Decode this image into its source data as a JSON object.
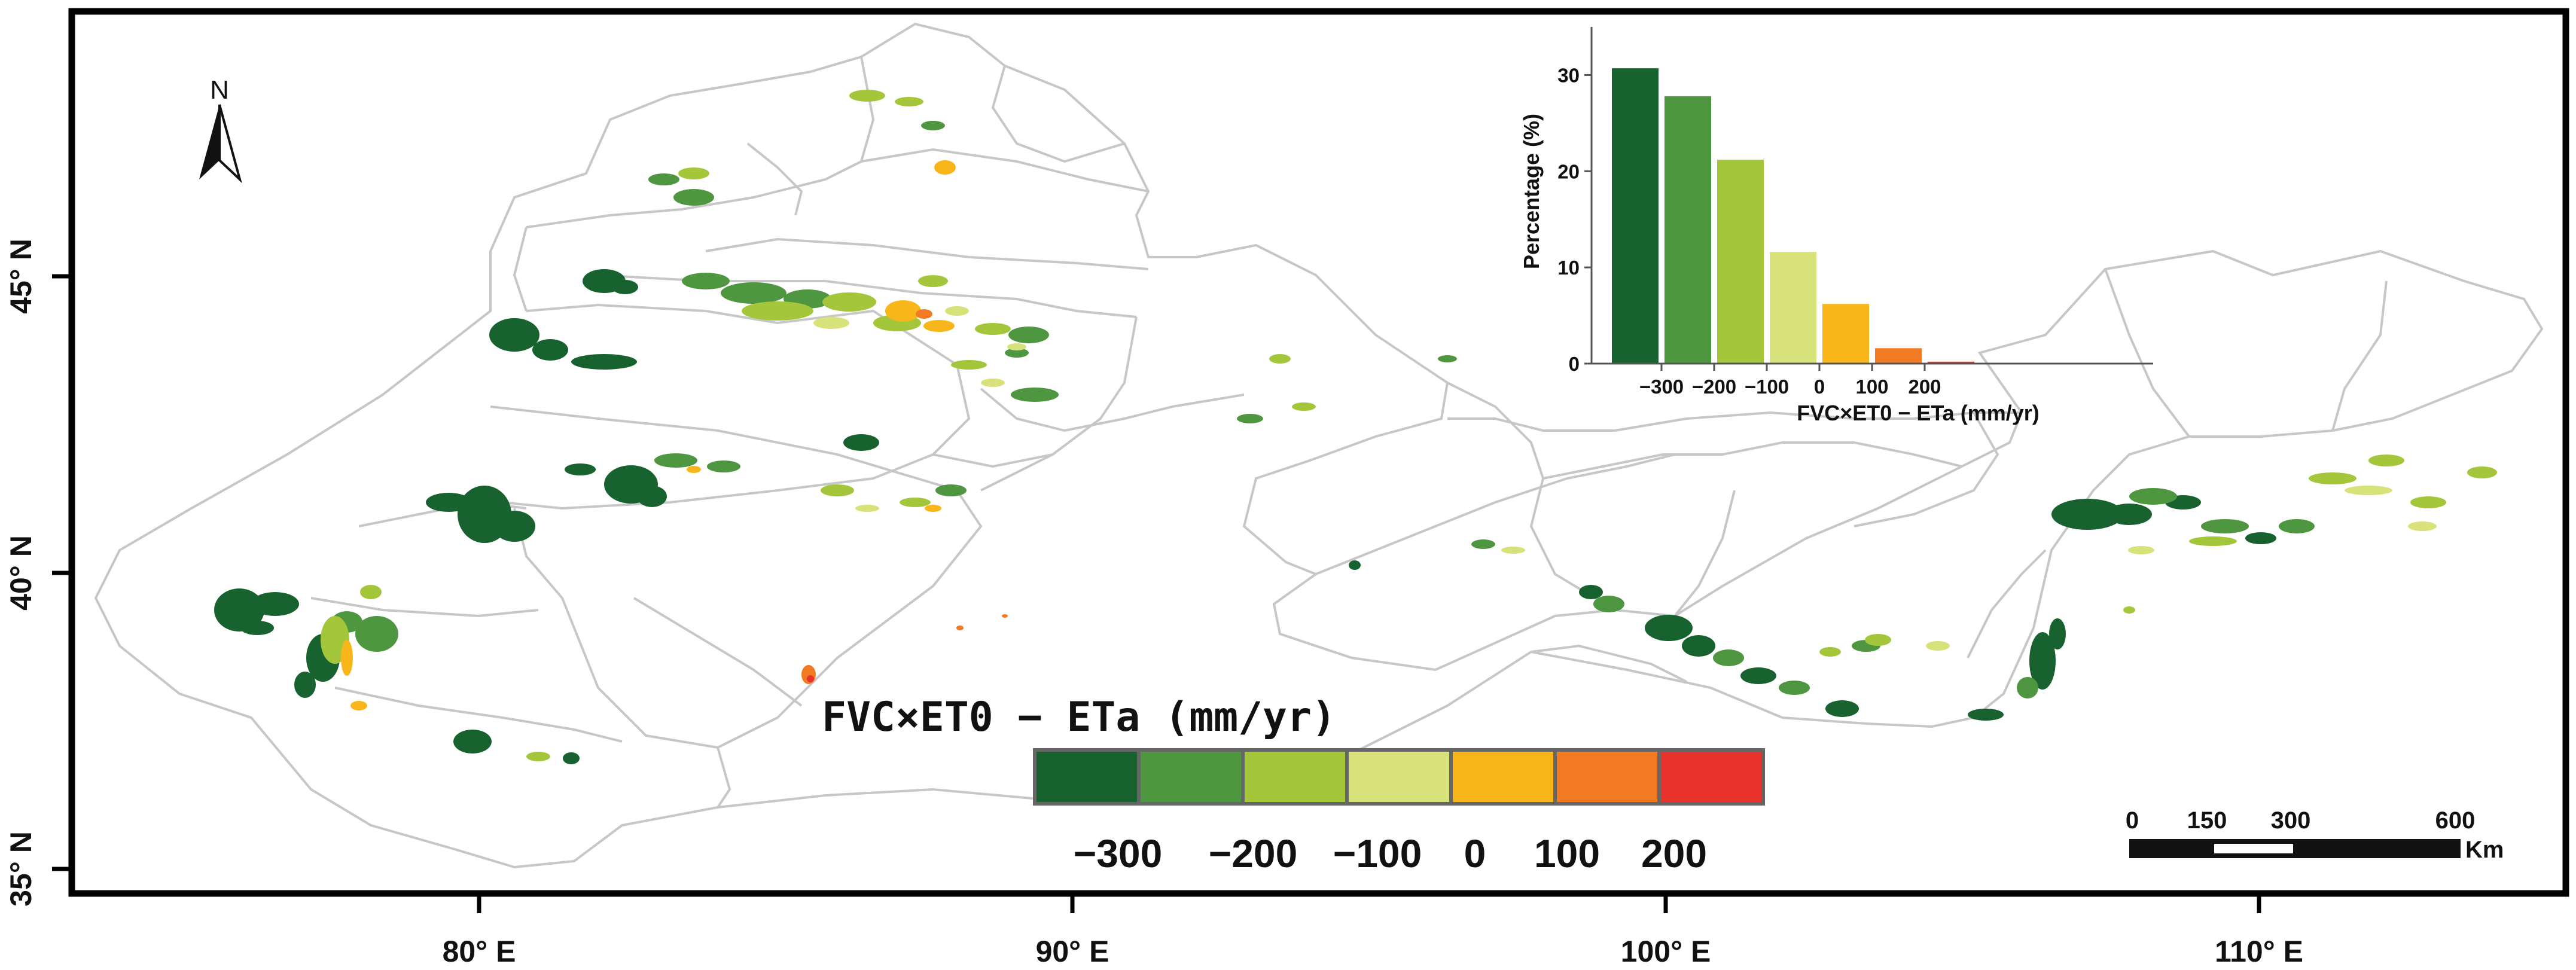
{
  "map": {
    "x_ticks": [
      "80° E",
      "90° E",
      "100° E",
      "110° E"
    ],
    "y_ticks": [
      "45° N",
      "40° N",
      "35° N"
    ],
    "north_label": "N"
  },
  "legend": {
    "title": "FVC×ET0 − ETa (mm/yr)",
    "colors": [
      "#17622f",
      "#4f9640",
      "#a4c63a",
      "#d7e27a",
      "#f8b61a",
      "#f27a22",
      "#e8322b"
    ],
    "ticks": [
      "−300",
      "−200",
      "−100",
      "0",
      "100",
      "200"
    ]
  },
  "scale_bar": {
    "labels": [
      "0",
      "150",
      "300",
      "600"
    ],
    "unit": "Km"
  },
  "chart_data": {
    "type": "bar",
    "title": "",
    "xlabel": "FVC×ET0 − ETa (mm/yr)",
    "ylabel": "Percentage (%)",
    "bins": [
      "<−300",
      "−300 to −200",
      "−200 to −100",
      "−100 to 0",
      "0 to 100",
      "100 to 200",
      ">200"
    ],
    "values": [
      30.7,
      27.8,
      21.2,
      11.6,
      6.2,
      1.6,
      0.2
    ],
    "colors": [
      "#17622f",
      "#4f9640",
      "#a4c63a",
      "#d7e27a",
      "#f8b61a",
      "#f27a22",
      "#e8322b"
    ],
    "x_tick_labels": [
      "−300",
      "−200",
      "−100",
      "0",
      "100",
      "200"
    ],
    "y_ticks": [
      "0",
      "10",
      "20",
      "30"
    ],
    "ylim": [
      0,
      35
    ]
  }
}
